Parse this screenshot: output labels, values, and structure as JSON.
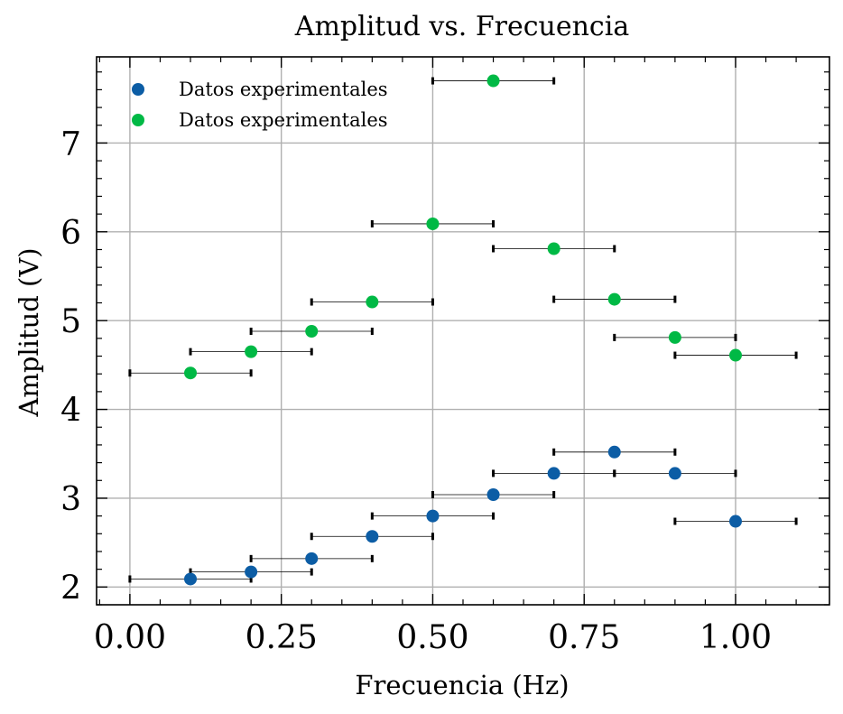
{
  "chart_data": {
    "type": "scatter",
    "title": "Amplitud vs. Frecuencia",
    "xlabel": "Frecuencia (Hz)",
    "ylabel": "Amplitud (V)",
    "xlim": [
      -0.055,
      1.155
    ],
    "ylim": [
      1.8,
      7.97
    ],
    "x_ticks": [
      0.0,
      0.25,
      0.5,
      0.75,
      1.0
    ],
    "x_tick_labels": [
      "0.00",
      "0.25",
      "0.50",
      "0.75",
      "1.00"
    ],
    "y_ticks": [
      2,
      3,
      4,
      5,
      6,
      7
    ],
    "y_tick_labels": [
      "2",
      "3",
      "4",
      "5",
      "6",
      "7"
    ],
    "grid": true,
    "legend_position": "top-left",
    "x_error": 0.1,
    "series": [
      {
        "name": "Datos experimentales",
        "color": "#0c5da5",
        "x": [
          0.1,
          0.2,
          0.3,
          0.4,
          0.5,
          0.6,
          0.7,
          0.8,
          0.9,
          1.0
        ],
        "y": [
          2.09,
          2.17,
          2.32,
          2.57,
          2.8,
          3.04,
          3.28,
          3.52,
          3.28,
          2.74
        ],
        "errorbar_y": [
          2.09,
          2.17,
          2.32,
          2.57,
          2.8,
          3.04,
          3.28,
          3.52,
          3.28,
          2.74
        ]
      },
      {
        "name": "Datos experimentales",
        "color": "#00b945",
        "x": [
          0.1,
          0.2,
          0.3,
          0.4,
          0.5,
          0.6,
          0.7,
          0.8,
          0.9,
          1.0
        ],
        "y": [
          4.41,
          4.65,
          4.88,
          5.21,
          6.09,
          7.7,
          5.81,
          5.24,
          4.81,
          4.61
        ],
        "errorbar_y": [
          4.41,
          4.65,
          4.88,
          5.21,
          6.09,
          7.7,
          5.81,
          5.24,
          4.81,
          4.61
        ]
      }
    ]
  }
}
